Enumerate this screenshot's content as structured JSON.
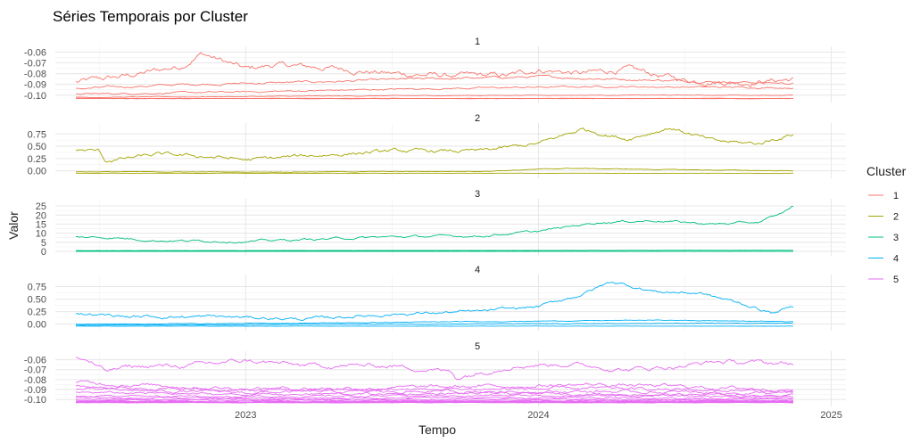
{
  "chart_data": {
    "type": "line",
    "title": "Séries Temporais por Cluster",
    "xlabel": "Tempo",
    "ylabel": "Valor",
    "legend": {
      "title": "Cluster",
      "placement": "right",
      "entries": [
        {
          "label": "1",
          "color": "#F8766D"
        },
        {
          "label": "2",
          "color": "#A3A500"
        },
        {
          "label": "3",
          "color": "#00BF7D"
        },
        {
          "label": "4",
          "color": "#00B0F6"
        },
        {
          "label": "5",
          "color": "#E76BF3"
        }
      ]
    },
    "x_ticks": [
      "2023",
      "2024",
      "2025"
    ],
    "x_tick_values": [
      2023,
      2024,
      2025
    ],
    "xlim": [
      2022.35,
      2025.05
    ],
    "x_range": [
      2022.42,
      2024.87
    ],
    "grid": true,
    "facets": [
      {
        "label": "1",
        "color": "#F8766D",
        "ylim": [
          -0.1035,
          -0.058
        ],
        "y_ticks": [
          -0.06,
          -0.07,
          -0.08,
          -0.09,
          -0.1
        ],
        "y_tick_labels": [
          "-0.06",
          "-0.07",
          "-0.08",
          "-0.09",
          "-0.10"
        ],
        "series": [
          {
            "t": [
              2022.42,
              2022.6,
              2022.78,
              2022.85,
              2023.0,
              2023.1,
              2023.3,
              2023.5,
              2023.7,
              2023.9,
              2024.0,
              2024.15,
              2024.3,
              2024.5,
              2024.7,
              2024.87
            ],
            "v": [
              -0.088,
              -0.082,
              -0.073,
              -0.061,
              -0.076,
              -0.072,
              -0.075,
              -0.08,
              -0.082,
              -0.082,
              -0.076,
              -0.08,
              -0.076,
              -0.086,
              -0.088,
              -0.085
            ],
            "noise": 0.0018
          },
          {
            "t": [
              2022.42,
              2022.8,
              2023.2,
              2023.6,
              2024.0,
              2024.4,
              2024.87
            ],
            "v": [
              -0.094,
              -0.09,
              -0.088,
              -0.085,
              -0.083,
              -0.086,
              -0.089
            ],
            "noise": 0.0007
          },
          {
            "t": [
              2022.42,
              2023.0,
              2023.6,
              2024.2,
              2024.87
            ],
            "v": [
              -0.099,
              -0.097,
              -0.094,
              -0.092,
              -0.093
            ],
            "noise": 0.0005
          },
          {
            "t": [
              2022.42,
              2023.2,
              2024.0,
              2024.87
            ],
            "v": [
              -0.102,
              -0.101,
              -0.1,
              -0.1
            ],
            "noise": 0.0002
          },
          {
            "t": [
              2022.42,
              2024.87
            ],
            "v": [
              -0.103,
              -0.103
            ],
            "noise": 0.0001
          },
          {
            "t": [
              2022.42,
              2024.87
            ],
            "v": [
              -0.1032,
              -0.1032
            ],
            "noise": 0.0001
          }
        ]
      },
      {
        "label": "2",
        "color": "#A3A500",
        "ylim": [
          -0.08,
          0.9
        ],
        "y_ticks": [
          0.0,
          0.25,
          0.5,
          0.75
        ],
        "y_tick_labels": [
          "0.00",
          "0.25",
          "0.50",
          "0.75"
        ],
        "series": [
          {
            "t": [
              2022.42,
              2022.5,
              2022.52,
              2022.7,
              2022.9,
              2023.0,
              2023.2,
              2023.5,
              2023.8,
              2024.0,
              2024.15,
              2024.3,
              2024.45,
              2024.6,
              2024.75,
              2024.87
            ],
            "v": [
              0.42,
              0.4,
              0.2,
              0.33,
              0.28,
              0.22,
              0.3,
              0.4,
              0.4,
              0.55,
              0.85,
              0.65,
              0.88,
              0.6,
              0.55,
              0.75
            ],
            "noise": 0.025
          },
          {
            "t": [
              2022.42,
              2023.0,
              2023.8,
              2024.1,
              2024.5,
              2024.87
            ],
            "v": [
              -0.02,
              -0.025,
              -0.01,
              0.05,
              0.02,
              0.0
            ],
            "noise": 0.004
          },
          {
            "t": [
              2022.42,
              2024.87
            ],
            "v": [
              -0.05,
              -0.05
            ],
            "noise": 0.001
          }
        ]
      },
      {
        "label": "3",
        "color": "#00BF7D",
        "ylim": [
          -0.5,
          27
        ],
        "y_ticks": [
          0,
          5,
          10,
          15,
          20,
          25
        ],
        "y_tick_labels": [
          "0",
          "5",
          "10",
          "15",
          "20",
          "25"
        ],
        "series": [
          {
            "t": [
              2022.42,
              2022.55,
              2022.7,
              2023.0,
              2023.3,
              2023.5,
              2023.8,
              2024.0,
              2024.2,
              2024.4,
              2024.6,
              2024.75,
              2024.82,
              2024.87
            ],
            "v": [
              8,
              7.5,
              6,
              5.5,
              7,
              8,
              8.5,
              11,
              16,
              17,
              15,
              16,
              20,
              25
            ],
            "noise": 0.4
          },
          {
            "t": [
              2022.42,
              2024.87
            ],
            "v": [
              0.4,
              0.6
            ],
            "noise": 0.02
          },
          {
            "t": [
              2022.42,
              2024.87
            ],
            "v": [
              0.0,
              0.0
            ],
            "noise": 0.0
          }
        ]
      },
      {
        "label": "4",
        "color": "#00B0F6",
        "ylim": [
          -0.06,
          0.92
        ],
        "y_ticks": [
          0.0,
          0.25,
          0.5,
          0.75
        ],
        "y_tick_labels": [
          "0.00",
          "0.25",
          "0.50",
          "0.75"
        ],
        "series": [
          {
            "t": [
              2022.42,
              2022.6,
              2022.9,
              2023.2,
              2023.5,
              2023.8,
              2024.0,
              2024.15,
              2024.25,
              2024.4,
              2024.55,
              2024.7,
              2024.8,
              2024.87
            ],
            "v": [
              0.22,
              0.15,
              0.15,
              0.1,
              0.2,
              0.25,
              0.35,
              0.6,
              0.85,
              0.65,
              0.62,
              0.4,
              0.22,
              0.35
            ],
            "noise": 0.02
          },
          {
            "t": [
              2022.42,
              2023.2,
              2024.0,
              2024.4,
              2024.87
            ],
            "v": [
              0.0,
              0.02,
              0.06,
              0.08,
              0.05
            ],
            "noise": 0.004
          },
          {
            "t": [
              2022.42,
              2023.5,
              2024.87
            ],
            "v": [
              -0.02,
              0.0,
              0.02
            ],
            "noise": 0.003
          },
          {
            "t": [
              2022.42,
              2024.87
            ],
            "v": [
              -0.04,
              -0.04
            ],
            "noise": 0.001
          }
        ]
      },
      {
        "label": "5",
        "color": "#E76BF3",
        "ylim": [
          -0.1035,
          -0.055
        ],
        "y_ticks": [
          -0.06,
          -0.07,
          -0.08,
          -0.09,
          -0.1
        ],
        "y_tick_labels": [
          "-0.06",
          "-0.07",
          "-0.08",
          "-0.09",
          "-0.10"
        ],
        "series": [
          {
            "t": [
              2022.42,
              2022.47,
              2022.52,
              2022.6,
              2022.8,
              2023.0,
              2023.2,
              2023.5,
              2023.7,
              2023.72,
              2023.9,
              2024.1,
              2024.3,
              2024.5,
              2024.6,
              2024.87
            ],
            "v": [
              -0.058,
              -0.062,
              -0.072,
              -0.067,
              -0.066,
              -0.061,
              -0.066,
              -0.066,
              -0.072,
              -0.078,
              -0.066,
              -0.064,
              -0.07,
              -0.066,
              -0.062,
              -0.064
            ],
            "noise": 0.0015
          },
          {
            "t": [
              2022.42,
              2023.0,
              2023.6,
              2024.2,
              2024.87
            ],
            "v": [
              -0.083,
              -0.089,
              -0.088,
              -0.085,
              -0.09
            ],
            "noise": 0.0012
          },
          {
            "t": [
              2022.42,
              2023.0,
              2023.6,
              2024.2,
              2024.87
            ],
            "v": [
              -0.087,
              -0.091,
              -0.09,
              -0.089,
              -0.092
            ],
            "noise": 0.001
          },
          {
            "t": [
              2022.42,
              2023.0,
              2023.6,
              2024.2,
              2024.87
            ],
            "v": [
              -0.09,
              -0.093,
              -0.092,
              -0.092,
              -0.094
            ],
            "noise": 0.001
          },
          {
            "t": [
              2022.42,
              2023.0,
              2024.0,
              2024.87
            ],
            "v": [
              -0.093,
              -0.095,
              -0.094,
              -0.096
            ],
            "noise": 0.0008
          },
          {
            "t": [
              2022.42,
              2023.0,
              2024.0,
              2024.87
            ],
            "v": [
              -0.096,
              -0.097,
              -0.096,
              -0.097
            ],
            "noise": 0.0006
          },
          {
            "t": [
              2022.42,
              2023.0,
              2024.0,
              2024.87
            ],
            "v": [
              -0.098,
              -0.099,
              -0.098,
              -0.099
            ],
            "noise": 0.0005
          },
          {
            "t": [
              2022.42,
              2024.87
            ],
            "v": [
              -0.1,
              -0.1
            ],
            "noise": 0.0004
          },
          {
            "t": [
              2022.42,
              2024.87
            ],
            "v": [
              -0.101,
              -0.101
            ],
            "noise": 0.0003
          },
          {
            "t": [
              2022.42,
              2024.87
            ],
            "v": [
              -0.102,
              -0.102
            ],
            "noise": 0.0002
          },
          {
            "t": [
              2022.42,
              2024.87
            ],
            "v": [
              -0.1025,
              -0.1025
            ],
            "noise": 0.0001
          },
          {
            "t": [
              2022.42,
              2024.87
            ],
            "v": [
              -0.103,
              -0.103
            ],
            "noise": 0.0001
          },
          {
            "t": [
              2022.42,
              2024.87
            ],
            "v": [
              -0.1033,
              -0.1033
            ],
            "noise": 0.0001
          }
        ]
      }
    ]
  }
}
